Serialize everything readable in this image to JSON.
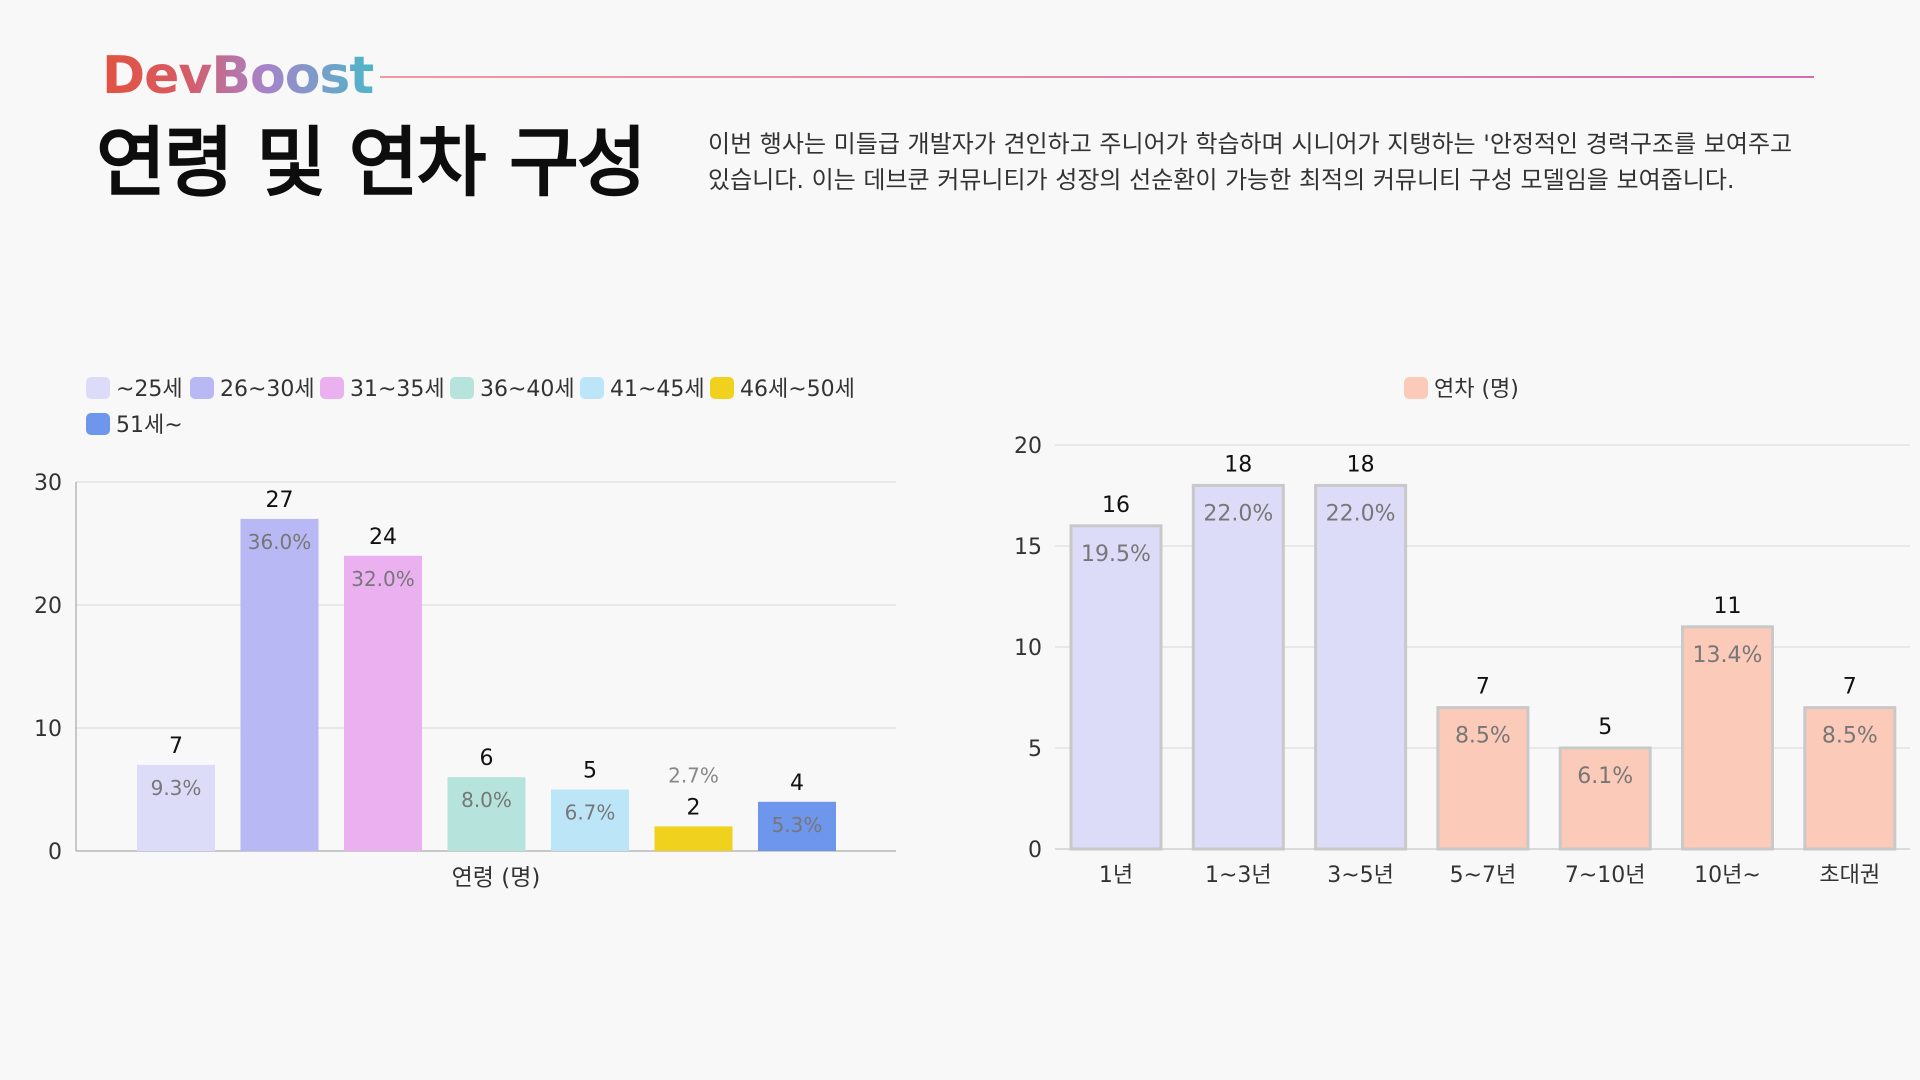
{
  "header": {
    "logo": "DevBoost",
    "title": "연령 및 연차 구성",
    "intro": "이번 행사는 미들급 개발자가 견인하고 주니어가 학습하며 시니어가 지탱하는 '안정적인 경력구조를 보여주고 있습니다. 이는 데브쿤 커뮤니티가 성장의 선순환이 가능한 최적의 커뮤니티 구성 모델임을 보여줍니다."
  },
  "colors": {
    "age": [
      "#dcdcf8",
      "#b8b8f4",
      "#ebb0f0",
      "#b6e4dc",
      "#bce6f8",
      "#f0d21e",
      "#6e96ec"
    ],
    "career_lavender": "#dcdcf8",
    "career_peach": "#fccab8"
  },
  "chart_data": [
    {
      "type": "bar",
      "title": "",
      "xlabel": "연령 (명)",
      "ylabel": "",
      "ylim": [
        0,
        30
      ],
      "yticks": [
        0,
        10,
        20,
        30
      ],
      "grid": true,
      "legend": "top-left",
      "series": [
        {
          "name": "~25세",
          "value": 7,
          "label": "9.3%"
        },
        {
          "name": "26~30세",
          "value": 27,
          "label": "36.0%"
        },
        {
          "name": "31~35세",
          "value": 24,
          "label": "32.0%"
        },
        {
          "name": "36~40세",
          "value": 6,
          "label": "8.0%"
        },
        {
          "name": "41~45세",
          "value": 5,
          "label": "6.7%"
        },
        {
          "name": "46세~50세",
          "value": 2,
          "label": "2.7%"
        },
        {
          "name": "51세~",
          "value": 4,
          "label": "5.3%"
        }
      ]
    },
    {
      "type": "bar",
      "title": "",
      "xlabel": "",
      "ylabel": "",
      "ylim": [
        0,
        20
      ],
      "yticks": [
        0,
        5,
        10,
        15,
        20
      ],
      "grid": true,
      "legend": "top-center",
      "series_name": "연차 (명)",
      "categories": [
        "1년",
        "1~3년",
        "3~5년",
        "5~7년",
        "7~10년",
        "10년~",
        "초대권"
      ],
      "values": [
        16,
        18,
        18,
        7,
        5,
        11,
        7
      ],
      "labels": [
        "19.5%",
        "22.0%",
        "22.0%",
        "8.5%",
        "6.1%",
        "13.4%",
        "8.5%"
      ]
    }
  ]
}
